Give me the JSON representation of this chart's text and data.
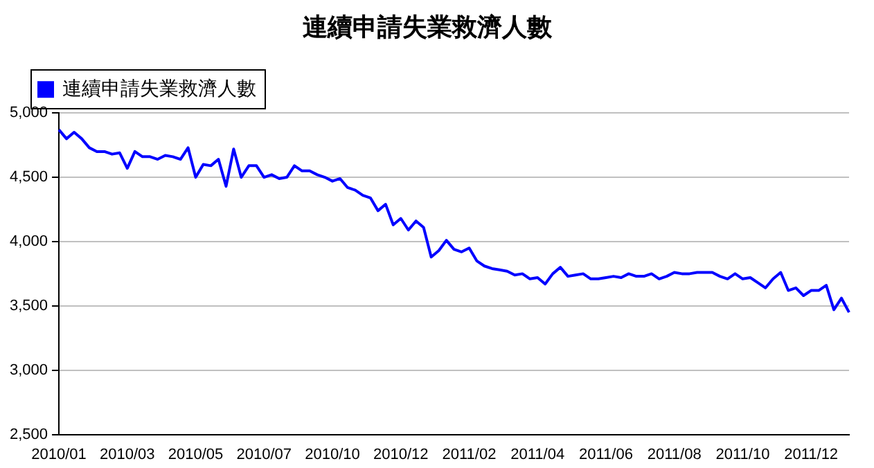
{
  "chart_data": {
    "type": "line",
    "title": "連續申請失業救濟人數",
    "categories": [
      "2010/01",
      null,
      null,
      null,
      null,
      null,
      null,
      null,
      null,
      "2010/03",
      null,
      null,
      null,
      null,
      null,
      null,
      null,
      null,
      "2010/05",
      null,
      null,
      null,
      null,
      null,
      null,
      null,
      null,
      "2010/07",
      null,
      null,
      null,
      null,
      null,
      null,
      null,
      null,
      "2010/10",
      null,
      null,
      null,
      null,
      null,
      null,
      null,
      null,
      "2010/12",
      null,
      null,
      null,
      null,
      null,
      null,
      null,
      null,
      "2011/02",
      null,
      null,
      null,
      null,
      null,
      null,
      null,
      null,
      "2011/04",
      null,
      null,
      null,
      null,
      null,
      null,
      null,
      null,
      "2011/06",
      null,
      null,
      null,
      null,
      null,
      null,
      null,
      null,
      "2011/08",
      null,
      null,
      null,
      null,
      null,
      null,
      null,
      null,
      "2011/10",
      null,
      null,
      null,
      null,
      null,
      null,
      null,
      null,
      "2011/12",
      null,
      null,
      null,
      null,
      null
    ],
    "series": [
      {
        "name": "連續申請失業救濟人數",
        "color": "#0000ff",
        "values": [
          4870,
          4800,
          4850,
          4800,
          4730,
          4700,
          4700,
          4680,
          4690,
          4570,
          4700,
          4660,
          4660,
          4640,
          4670,
          4660,
          4640,
          4730,
          4500,
          4600,
          4590,
          4640,
          4430,
          4720,
          4500,
          4590,
          4590,
          4500,
          4520,
          4490,
          4500,
          4590,
          4550,
          4550,
          4520,
          4500,
          4470,
          4490,
          4420,
          4400,
          4360,
          4340,
          4240,
          4290,
          4130,
          4180,
          4090,
          4160,
          4110,
          3880,
          3930,
          4010,
          3940,
          3920,
          3950,
          3850,
          3810,
          3790,
          3780,
          3770,
          3740,
          3750,
          3710,
          3720,
          3670,
          3750,
          3800,
          3730,
          3740,
          3750,
          3710,
          3710,
          3720,
          3730,
          3720,
          3750,
          3730,
          3730,
          3750,
          3710,
          3730,
          3760,
          3750,
          3750,
          3760,
          3760,
          3760,
          3730,
          3710,
          3750,
          3710,
          3720,
          3680,
          3640,
          3710,
          3760,
          3620,
          3640,
          3580,
          3620,
          3620,
          3660,
          3470,
          3560,
          3450
        ]
      }
    ],
    "ylim": [
      2500,
      5000
    ],
    "yticks": [
      {
        "value": 2500,
        "label": "2,500"
      },
      {
        "value": 3000,
        "label": "3,000"
      },
      {
        "value": 3500,
        "label": "3,500"
      },
      {
        "value": 4000,
        "label": "4,000"
      },
      {
        "value": 4500,
        "label": "4,500"
      },
      {
        "value": 5000,
        "label": "5,000"
      }
    ],
    "grid": "y",
    "legend": "top left",
    "marker": "none",
    "line_style": "solid"
  }
}
